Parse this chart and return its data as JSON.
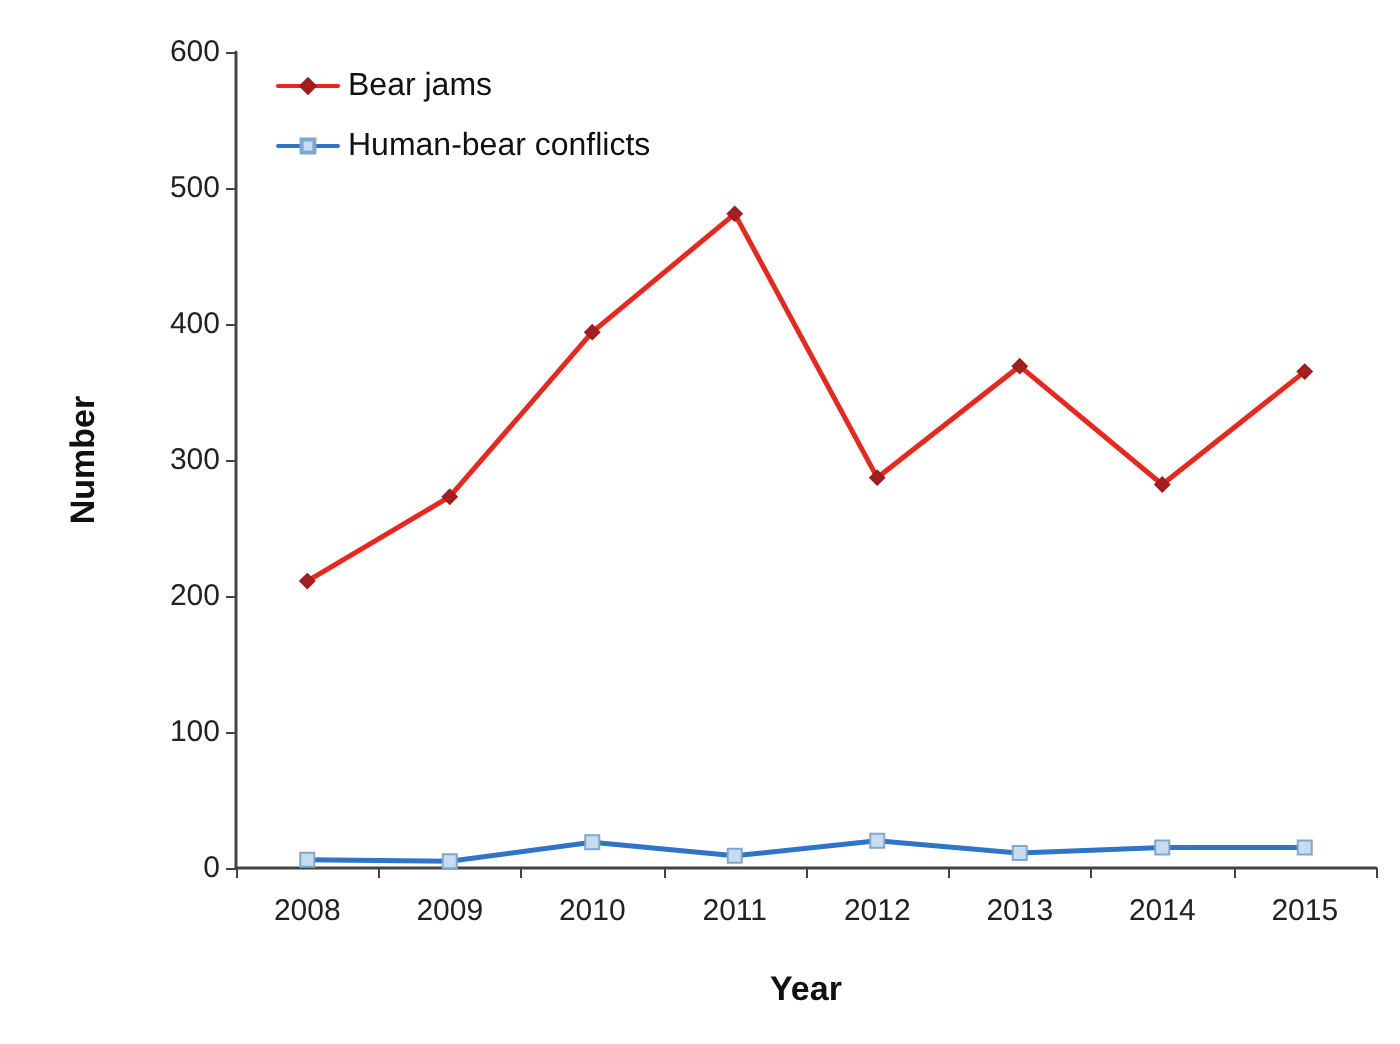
{
  "chart_data": {
    "type": "line",
    "xlabel": "Year",
    "ylabel": "Number",
    "categories": [
      "2008",
      "2009",
      "2010",
      "2011",
      "2012",
      "2013",
      "2014",
      "2015"
    ],
    "series": [
      {
        "name": "Bear jams",
        "color": "#e8271f",
        "marker": "diamond",
        "values": [
          211,
          273,
          394,
          481,
          287,
          369,
          282,
          365
        ]
      },
      {
        "name": "Human-bear conflicts",
        "color": "#2e75c8",
        "marker": "square",
        "values": [
          6,
          5,
          19,
          9,
          20,
          11,
          15,
          15
        ]
      }
    ],
    "ylim": [
      0,
      600
    ],
    "yticks": [
      0,
      100,
      200,
      300,
      400,
      500,
      600
    ],
    "grid": false,
    "legend": "top left"
  }
}
